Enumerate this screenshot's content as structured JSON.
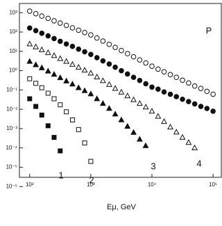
{
  "chart_data": {
    "type": "scatter",
    "log_x": true,
    "log_y": true,
    "xlabel": "Eμ, GeV",
    "annotations": [
      "P",
      "1",
      "2",
      "3",
      "4"
    ],
    "xlim": [
      68,
      140000
    ],
    "ylim": [
      3e-06,
      3000
    ],
    "xticks": [
      {
        "value": 100,
        "label": "10²"
      },
      {
        "value": 1000,
        "label": "10³"
      },
      {
        "value": 10000,
        "label": "10⁴"
      },
      {
        "value": 100000,
        "label": "10⁵"
      }
    ],
    "yticks": [
      {
        "value": 1e-06,
        "label": "10⁻⁶"
      },
      {
        "value": 1e-05,
        "label": "10⁻⁵"
      },
      {
        "value": 0.0001,
        "label": "10⁻⁴"
      },
      {
        "value": 0.001,
        "label": "10⁻³"
      },
      {
        "value": 0.01,
        "label": "10⁻²"
      },
      {
        "value": 0.1,
        "label": "10⁻¹"
      },
      {
        "value": 1,
        "label": "10⁰"
      },
      {
        "value": 10,
        "label": "10¹"
      },
      {
        "value": 100,
        "label": "10²"
      },
      {
        "value": 1000,
        "label": "10³"
      }
    ],
    "series": [
      {
        "marker": "circle",
        "filled": false,
        "color": "#111111",
        "x": [
          100,
          126,
          158,
          200,
          251,
          316,
          398,
          501,
          631,
          794,
          1000,
          1260,
          1580,
          2000,
          2510,
          3160,
          3980,
          5010,
          6310,
          7940,
          10000,
          12600,
          15800,
          20000,
          25100,
          31600,
          39800,
          50100,
          63100,
          79400,
          100000
        ],
        "values": [
          1200,
          890,
          670,
          510,
          380,
          290,
          220,
          164,
          124,
          94,
          71,
          49,
          34,
          23,
          16,
          11,
          7.6,
          5.2,
          3.6,
          2.5,
          1.7,
          1.2,
          0.87,
          0.62,
          0.45,
          0.32,
          0.23,
          0.16,
          0.12,
          0.084,
          0.06
        ]
      },
      {
        "marker": "circle",
        "filled": true,
        "color": "#111111",
        "x": [
          100,
          126,
          158,
          200,
          251,
          316,
          398,
          501,
          631,
          794,
          1000,
          1260,
          1580,
          2000,
          2510,
          3160,
          3980,
          5010,
          6310,
          7940,
          10000,
          12600,
          15800,
          20000,
          25100,
          31600,
          39800,
          50100,
          63100,
          79400,
          100000
        ],
        "values": [
          160,
          118,
          86,
          63,
          46,
          33,
          24,
          18,
          13,
          9.5,
          6.9,
          4.7,
          3.2,
          2.2,
          1.5,
          0.99,
          0.67,
          0.45,
          0.31,
          0.21,
          0.14,
          0.11,
          0.079,
          0.06,
          0.045,
          0.033,
          0.025,
          0.019,
          0.014,
          0.011,
          0.0079
        ]
      },
      {
        "marker": "triangle",
        "filled": false,
        "color": "#111111",
        "x": [
          100,
          126,
          158,
          200,
          251,
          316,
          398,
          501,
          631,
          794,
          1000,
          1260,
          1580,
          2000,
          2510,
          3160,
          3980,
          5010,
          6310,
          7940,
          10000,
          12600,
          15800,
          20000,
          25100,
          31600,
          39800,
          50000
        ],
        "values": [
          24,
          17,
          12,
          8.5,
          6.0,
          4.2,
          3.0,
          2.1,
          1.5,
          1.05,
          0.74,
          0.47,
          0.3,
          0.19,
          0.12,
          0.077,
          0.049,
          0.031,
          0.02,
          0.013,
          0.0079,
          0.0043,
          0.0023,
          0.0012,
          0.00066,
          0.00035,
          0.00019,
          0.0001
        ]
      },
      {
        "marker": "triangle",
        "filled": true,
        "color": "#111111",
        "x": [
          100,
          126,
          158,
          200,
          251,
          316,
          398,
          501,
          631,
          794,
          1000,
          1260,
          1580,
          2000,
          2510,
          3160,
          3980,
          5010,
          6310,
          7900
        ],
        "values": [
          3.0,
          2.0,
          1.4,
          0.94,
          0.64,
          0.43,
          0.29,
          0.2,
          0.13,
          0.091,
          0.062,
          0.035,
          0.02,
          0.011,
          0.0056,
          0.0028,
          0.0013,
          0.00063,
          0.00028,
          0.00013
        ]
      },
      {
        "marker": "square",
        "filled": false,
        "color": "#111111",
        "x": [
          100,
          126,
          158,
          200,
          251,
          316,
          398,
          501,
          631,
          794,
          1000
        ],
        "values": [
          0.38,
          0.22,
          0.13,
          0.068,
          0.035,
          0.017,
          0.0074,
          0.0028,
          0.00089,
          0.00018,
          2e-05
        ]
      },
      {
        "marker": "square",
        "filled": true,
        "color": "#111111",
        "x": [
          100,
          126,
          158,
          200,
          251,
          316
        ],
        "values": [
          0.035,
          0.014,
          0.005,
          0.0014,
          0.00035,
          7e-05
        ]
      }
    ]
  }
}
